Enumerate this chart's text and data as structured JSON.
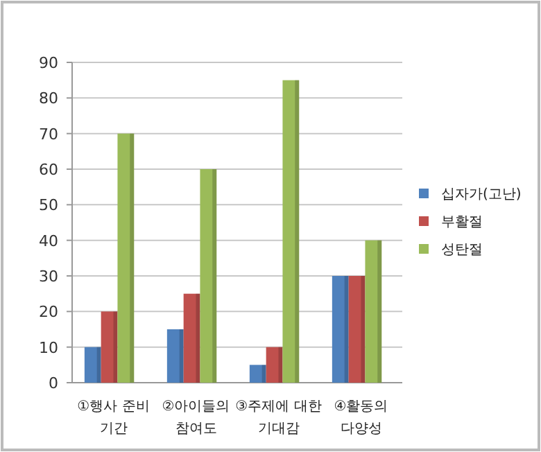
{
  "chart_data": {
    "type": "bar",
    "categories": [
      "①행사 준비 기간",
      "②아이들의 참여도",
      "③주제에 대한 기대감",
      "④활동의 다양성"
    ],
    "series": [
      {
        "name": "십자가(고난)",
        "color": "#4f81bd",
        "values": [
          10,
          15,
          5,
          30
        ]
      },
      {
        "name": "부활절",
        "color": "#c0504d",
        "values": [
          20,
          25,
          10,
          30
        ]
      },
      {
        "name": "성탄절",
        "color": "#9bbb59",
        "values": [
          70,
          60,
          85,
          40
        ]
      }
    ],
    "ylim": [
      0,
      90
    ],
    "yticks": [
      0,
      10,
      20,
      30,
      40,
      50,
      60,
      70,
      80,
      90
    ],
    "grid": "y",
    "legend": "right"
  }
}
